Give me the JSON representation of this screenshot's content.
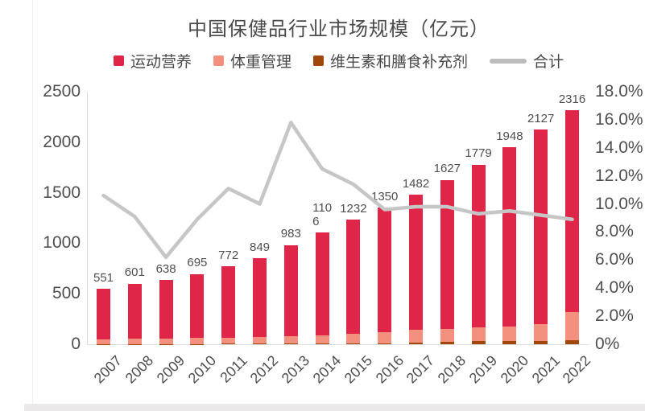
{
  "title": "中国保健品行业市场规模（亿元）",
  "colors": {
    "sports_nutrition": "#E02648",
    "weight_management": "#F4907E",
    "vitamins_supplements": "#A0480C",
    "total_line": "#C6C6C6",
    "axis_text": "#4F4F4F",
    "title_text": "#4A4A4A"
  },
  "legend": {
    "items": [
      {
        "label": "运动营养",
        "slug": "sports-nutrition",
        "marker": "square",
        "color": "#E02648"
      },
      {
        "label": "体重管理",
        "slug": "weight-management",
        "marker": "square",
        "color": "#F4907E"
      },
      {
        "label": "维生素和膳食补充剂",
        "slug": "vitamins-supplements",
        "marker": "square",
        "color": "#A0480C"
      },
      {
        "label": "合计",
        "slug": "total",
        "marker": "line",
        "color": "#BDBDBD"
      }
    ]
  },
  "chart_data": {
    "type": "bar",
    "subtype": "stacked-bars-with-line-overlay",
    "title": "中国保健品行业市场规模（亿元）",
    "categories": [
      "2007",
      "2008",
      "2009",
      "2010",
      "2011",
      "2012",
      "2013",
      "2014",
      "2015",
      "2016",
      "2017",
      "2018",
      "2019",
      "2020",
      "2021",
      "2022"
    ],
    "totals": [
      551,
      601,
      638,
      695,
      772,
      849,
      983,
      1106,
      1232,
      1350,
      1482,
      1627,
      1779,
      1948,
      2127,
      2316
    ],
    "value_labels": [
      "551",
      "601",
      "638",
      "695",
      "772",
      "849",
      "983",
      "110\n6",
      "1232",
      "1350",
      "1482",
      "1627",
      "1779",
      "1948",
      "2127",
      "2316"
    ],
    "stack_order_bottom_to_top": [
      "维生素和膳食补充剂",
      "体重管理",
      "运动营养"
    ],
    "segment_values_estimated": true,
    "series": [
      {
        "name": "运动营养",
        "color": "#E02648",
        "values": [
          500,
          546,
          579,
          633,
          705,
          776,
          903,
          1018,
          1132,
          1228,
          1338,
          1477,
          1614,
          1773,
          1927,
          2001
        ]
      },
      {
        "name": "体重管理",
        "color": "#F4907E",
        "values": [
          48,
          52,
          55,
          58,
          62,
          68,
          74,
          82,
          92,
          112,
          130,
          125,
          137,
          145,
          165,
          275
        ]
      },
      {
        "name": "维生素和膳食补充剂",
        "color": "#A0480C",
        "values": [
          3,
          3,
          4,
          4,
          5,
          5,
          6,
          6,
          8,
          10,
          14,
          25,
          28,
          30,
          35,
          40
        ]
      }
    ],
    "line_series": {
      "name": "合计",
      "axis": "right",
      "unit": "%",
      "color": "#C6C6C6",
      "values": [
        10.6,
        9.1,
        6.2,
        8.9,
        11.1,
        10.0,
        15.8,
        12.5,
        11.4,
        9.6,
        9.8,
        9.8,
        9.3,
        9.5,
        9.2,
        8.9
      ]
    },
    "left_axis": {
      "min": 0,
      "max": 2500,
      "ticks": [
        "2500",
        "2000",
        "1500",
        "1000",
        "500",
        "0"
      ]
    },
    "right_axis": {
      "min": 0,
      "max": 18,
      "ticks": [
        "18.0%",
        "16.0%",
        "14.0%",
        "12.0%",
        "10.0%",
        "8.0%",
        "6.0%",
        "4.0%",
        "2.0%",
        "0%"
      ]
    },
    "grid": "off",
    "legend_position": "top"
  }
}
